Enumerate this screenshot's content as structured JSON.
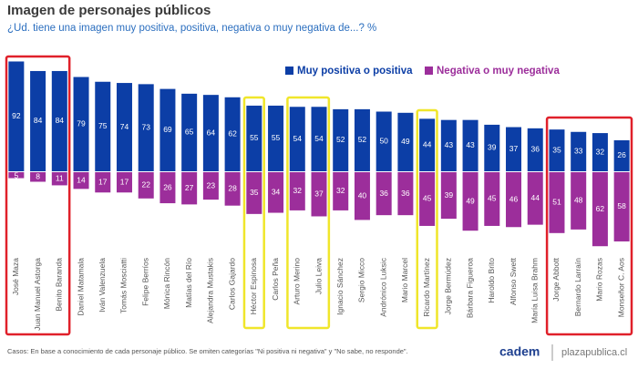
{
  "chart_data": {
    "type": "diverging-bar",
    "title": "Imagen de personajes públicos",
    "subtitle": "¿Ud. tiene una imagen muy positiva, positiva, negativa o muy negativa de...? %",
    "categories": [
      "José Maza",
      "Juan Manuel Astorga",
      "Benito Baranda",
      "Daniel Matamala",
      "Iván Valenzuela",
      "Tomás Mosciatti",
      "Felipe Berríos",
      "Mónica Rincón",
      "Matías del Río",
      "Alejandra Mustakis",
      "Carlos Gajardo",
      "Héctor Espinosa",
      "Carlos Peña",
      "Arturo Merino",
      "Julio Leiva",
      "Ignacio Sánchez",
      "Sergio Micco",
      "Andrónico Luksic",
      "Mario Marcel",
      "Ricardo Martínez",
      "Jorge Bermúdez",
      "Bárbara Figueroa",
      "Haroldo Brito",
      "Alfonso Swett",
      "María Luisa Brahm",
      "Jorge Abbott",
      "Bernardo Larraín",
      "Mario Rozas",
      "Monseñor C. Aos"
    ],
    "series": [
      {
        "name": "Muy positiva o positiva",
        "color": "#0c3ea6",
        "values": [
          92,
          84,
          84,
          79,
          75,
          74,
          73,
          69,
          65,
          64,
          62,
          55,
          55,
          54,
          54,
          52,
          52,
          50,
          49,
          44,
          43,
          43,
          39,
          37,
          36,
          35,
          33,
          32,
          26
        ]
      },
      {
        "name": "Negativa o muy negativa",
        "color": "#9c2e9b",
        "values": [
          5,
          8,
          11,
          14,
          17,
          17,
          22,
          26,
          27,
          23,
          28,
          35,
          34,
          32,
          37,
          32,
          40,
          36,
          36,
          45,
          39,
          49,
          45,
          46,
          44,
          51,
          48,
          62,
          58
        ]
      }
    ],
    "footnote": "Casos: En base a conocimiento de cada personaje público. Se omiten categorías \"Ni positiva ni negativa\" y \"No sabe, no responde\".",
    "brand": "cadem",
    "source": "plazapublica.cl"
  }
}
